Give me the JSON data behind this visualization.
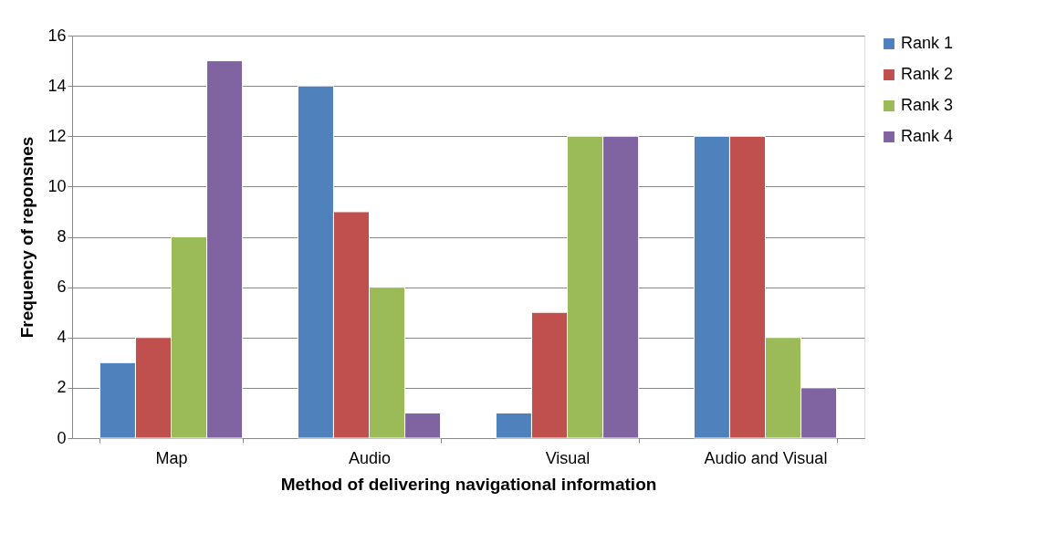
{
  "chart_data": {
    "type": "bar",
    "xlabel": "Method of delivering navigational information",
    "ylabel": "Frequency of reponsnes",
    "categories": [
      "Map",
      "Audio",
      "Visual",
      "Audio and Visual"
    ],
    "series": [
      {
        "name": "Rank 1",
        "color": "#4f81bd",
        "values": [
          3,
          14,
          1,
          12
        ]
      },
      {
        "name": "Rank 2",
        "color": "#c0504d",
        "values": [
          4,
          9,
          5,
          12
        ]
      },
      {
        "name": "Rank 3",
        "color": "#9bbb59",
        "values": [
          8,
          6,
          12,
          4
        ]
      },
      {
        "name": "Rank 4",
        "color": "#8064a2",
        "values": [
          15,
          1,
          12,
          2
        ]
      }
    ],
    "ylim": [
      0,
      16
    ],
    "yticks": [
      0,
      2,
      4,
      6,
      8,
      10,
      12,
      14,
      16
    ],
    "grid": "y",
    "legend": "right"
  }
}
